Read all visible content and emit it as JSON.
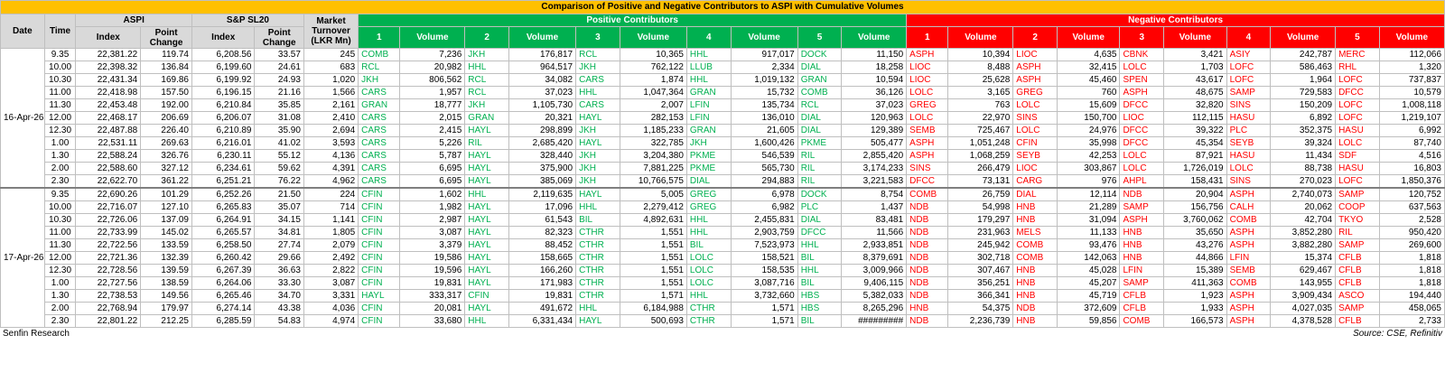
{
  "title": "Comparison of Positive and Negative Contributors to ASPI with Cumulative Volumes",
  "headers": {
    "date": "Date",
    "time": "Time",
    "aspi": "ASPI",
    "sp": "S&P SL20",
    "index": "Index",
    "point_change": "Point Change",
    "turnover": "Market Turnover (LKR Mn)",
    "positive": "Positive Contributors",
    "negative": "Negative Contributors",
    "volume": "Volume",
    "nums": [
      "1",
      "2",
      "3",
      "4",
      "5"
    ]
  },
  "days": [
    {
      "date": "16-Apr-26",
      "rows": [
        [
          "9.35",
          "22,381.22",
          "119.74",
          "6,208.56",
          "33.57",
          "245",
          "COMB",
          "7,236",
          "JKH",
          "176,817",
          "RCL",
          "10,365",
          "HHL",
          "917,017",
          "DOCK",
          "11,150",
          "ASPH",
          "10,394",
          "LIOC",
          "4,635",
          "CBNK",
          "3,421",
          "ASIY",
          "242,787",
          "MERC",
          "112,066"
        ],
        [
          "10.00",
          "22,398.32",
          "136.84",
          "6,199.60",
          "24.61",
          "683",
          "RCL",
          "20,982",
          "HHL",
          "964,517",
          "JKH",
          "762,122",
          "LLUB",
          "2,334",
          "DIAL",
          "18,258",
          "LIOC",
          "8,488",
          "ASPH",
          "32,415",
          "LOLC",
          "1,703",
          "LOFC",
          "586,463",
          "RHL",
          "1,320"
        ],
        [
          "10.30",
          "22,431.34",
          "169.86",
          "6,199.92",
          "24.93",
          "1,020",
          "JKH",
          "806,562",
          "RCL",
          "34,082",
          "CARS",
          "1,874",
          "HHL",
          "1,019,132",
          "GRAN",
          "10,594",
          "LIOC",
          "25,628",
          "ASPH",
          "45,460",
          "SPEN",
          "43,617",
          "LOFC",
          "1,964",
          "LOFC",
          "737,837"
        ],
        [
          "11.00",
          "22,418.98",
          "157.50",
          "6,196.15",
          "21.16",
          "1,566",
          "CARS",
          "1,957",
          "RCL",
          "37,023",
          "HHL",
          "1,047,364",
          "GRAN",
          "15,732",
          "COMB",
          "36,126",
          "LOLC",
          "3,165",
          "GREG",
          "760",
          "ASPH",
          "48,675",
          "SAMP",
          "729,583",
          "DFCC",
          "10,579"
        ],
        [
          "11.30",
          "22,453.48",
          "192.00",
          "6,210.84",
          "35.85",
          "2,161",
          "GRAN",
          "18,777",
          "JKH",
          "1,105,730",
          "CARS",
          "2,007",
          "LFIN",
          "135,734",
          "RCL",
          "37,023",
          "GREG",
          "763",
          "LOLC",
          "15,609",
          "DFCC",
          "32,820",
          "SINS",
          "150,209",
          "LOFC",
          "1,008,118"
        ],
        [
          "12.00",
          "22,468.17",
          "206.69",
          "6,206.07",
          "31.08",
          "2,410",
          "CARS",
          "2,015",
          "GRAN",
          "20,321",
          "HAYL",
          "282,153",
          "LFIN",
          "136,010",
          "DIAL",
          "120,963",
          "LOLC",
          "22,970",
          "SINS",
          "150,700",
          "LIOC",
          "112,115",
          "HASU",
          "6,892",
          "LOFC",
          "1,219,107"
        ],
        [
          "12.30",
          "22,487.88",
          "226.40",
          "6,210.89",
          "35.90",
          "2,694",
          "CARS",
          "2,415",
          "HAYL",
          "298,899",
          "JKH",
          "1,185,233",
          "GRAN",
          "21,605",
          "DIAL",
          "129,389",
          "SEMB",
          "725,467",
          "LOLC",
          "24,976",
          "DFCC",
          "39,322",
          "PLC",
          "352,375",
          "HASU",
          "6,992"
        ],
        [
          "1.00",
          "22,531.11",
          "269.63",
          "6,216.01",
          "41.02",
          "3,593",
          "CARS",
          "5,226",
          "RIL",
          "2,685,420",
          "HAYL",
          "322,785",
          "JKH",
          "1,600,426",
          "PKME",
          "505,477",
          "ASPH",
          "1,051,248",
          "CFIN",
          "35,998",
          "DFCC",
          "45,354",
          "SEYB",
          "39,324",
          "LOLC",
          "87,740"
        ],
        [
          "1.30",
          "22,588.24",
          "326.76",
          "6,230.11",
          "55.12",
          "4,136",
          "CARS",
          "5,787",
          "HAYL",
          "328,440",
          "JKH",
          "3,204,380",
          "PKME",
          "546,539",
          "RIL",
          "2,855,420",
          "ASPH",
          "1,068,259",
          "SEYB",
          "42,253",
          "LOLC",
          "87,921",
          "HASU",
          "11,434",
          "SDF",
          "4,516"
        ],
        [
          "2.00",
          "22,588.60",
          "327.12",
          "6,234.61",
          "59.62",
          "4,391",
          "CARS",
          "6,695",
          "HAYL",
          "375,900",
          "JKH",
          "7,881,225",
          "PKME",
          "565,730",
          "RIL",
          "3,174,233",
          "SINS",
          "266,479",
          "LIOC",
          "303,867",
          "LOLC",
          "1,726,019",
          "LOLC",
          "88,738",
          "HASU",
          "16,803"
        ],
        [
          "2.30",
          "22,622.70",
          "361.22",
          "6,251.21",
          "76.22",
          "4,962",
          "CARS",
          "6,695",
          "HAYL",
          "385,069",
          "JKH",
          "10,766,575",
          "DIAL",
          "294,883",
          "RIL",
          "3,221,583",
          "DFCC",
          "73,131",
          "CARG",
          "976",
          "AHPL",
          "158,431",
          "SINS",
          "270,023",
          "LOFC",
          "1,850,376"
        ]
      ]
    },
    {
      "date": "17-Apr-26",
      "rows": [
        [
          "9.35",
          "22,690.26",
          "101.29",
          "6,252.26",
          "21.50",
          "224",
          "CFIN",
          "1,602",
          "HHL",
          "2,119,635",
          "HAYL",
          "5,005",
          "GREG",
          "6,978",
          "DOCK",
          "8,754",
          "COMB",
          "26,759",
          "DIAL",
          "12,114",
          "NDB",
          "20,904",
          "ASPH",
          "2,740,073",
          "SAMP",
          "120,752"
        ],
        [
          "10.00",
          "22,716.07",
          "127.10",
          "6,265.83",
          "35.07",
          "714",
          "CFIN",
          "1,982",
          "HAYL",
          "17,096",
          "HHL",
          "2,279,412",
          "GREG",
          "6,982",
          "PLC",
          "1,437",
          "NDB",
          "54,998",
          "HNB",
          "21,289",
          "SAMP",
          "156,756",
          "CALH",
          "20,062",
          "COOP",
          "637,563"
        ],
        [
          "10.30",
          "22,726.06",
          "137.09",
          "6,264.91",
          "34.15",
          "1,141",
          "CFIN",
          "2,987",
          "HAYL",
          "61,543",
          "BIL",
          "4,892,631",
          "HHL",
          "2,455,831",
          "DIAL",
          "83,481",
          "NDB",
          "179,297",
          "HNB",
          "31,094",
          "ASPH",
          "3,760,062",
          "COMB",
          "42,704",
          "TKYO",
          "2,528"
        ],
        [
          "11.00",
          "22,733.99",
          "145.02",
          "6,265.57",
          "34.81",
          "1,805",
          "CFIN",
          "3,087",
          "HAYL",
          "82,323",
          "CTHR",
          "1,551",
          "HHL",
          "2,903,759",
          "DFCC",
          "11,566",
          "NDB",
          "231,963",
          "MELS",
          "11,133",
          "HNB",
          "35,650",
          "ASPH",
          "3,852,280",
          "RIL",
          "950,420"
        ],
        [
          "11.30",
          "22,722.56",
          "133.59",
          "6,258.50",
          "27.74",
          "2,079",
          "CFIN",
          "3,379",
          "HAYL",
          "88,452",
          "CTHR",
          "1,551",
          "BIL",
          "7,523,973",
          "HHL",
          "2,933,851",
          "NDB",
          "245,942",
          "COMB",
          "93,476",
          "HNB",
          "43,276",
          "ASPH",
          "3,882,280",
          "SAMP",
          "269,600"
        ],
        [
          "12.00",
          "22,721.36",
          "132.39",
          "6,260.42",
          "29.66",
          "2,492",
          "CFIN",
          "19,586",
          "HAYL",
          "158,665",
          "CTHR",
          "1,551",
          "LOLC",
          "158,521",
          "BIL",
          "8,379,691",
          "NDB",
          "302,718",
          "COMB",
          "142,063",
          "HNB",
          "44,866",
          "LFIN",
          "15,374",
          "CFLB",
          "1,818"
        ],
        [
          "12.30",
          "22,728.56",
          "139.59",
          "6,267.39",
          "36.63",
          "2,822",
          "CFIN",
          "19,596",
          "HAYL",
          "166,260",
          "CTHR",
          "1,551",
          "LOLC",
          "158,535",
          "HHL",
          "3,009,966",
          "NDB",
          "307,467",
          "HNB",
          "45,028",
          "LFIN",
          "15,389",
          "SEMB",
          "629,467",
          "CFLB",
          "1,818"
        ],
        [
          "1.00",
          "22,727.56",
          "138.59",
          "6,264.06",
          "33.30",
          "3,087",
          "CFIN",
          "19,831",
          "HAYL",
          "171,983",
          "CTHR",
          "1,551",
          "LOLC",
          "3,087,716",
          "BIL",
          "9,406,115",
          "NDB",
          "356,251",
          "HNB",
          "45,207",
          "SAMP",
          "411,363",
          "COMB",
          "143,955",
          "CFLB",
          "1,818"
        ],
        [
          "1.30",
          "22,738.53",
          "149.56",
          "6,265.46",
          "34.70",
          "3,331",
          "HAYL",
          "333,317",
          "CFIN",
          "19,831",
          "CTHR",
          "1,571",
          "HHL",
          "3,732,660",
          "HBS",
          "5,382,033",
          "NDB",
          "366,341",
          "HNB",
          "45,719",
          "CFLB",
          "1,923",
          "ASPH",
          "3,909,434",
          "ASCO",
          "194,440"
        ],
        [
          "2.00",
          "22,768.94",
          "179.97",
          "6,274.14",
          "43.38",
          "4,036",
          "CFIN",
          "20,081",
          "HAYL",
          "491,672",
          "HHL",
          "6,184,988",
          "CTHR",
          "1,571",
          "HBS",
          "8,265,296",
          "HNB",
          "54,375",
          "NDB",
          "372,609",
          "CFLB",
          "1,933",
          "ASPH",
          "4,027,035",
          "SAMP",
          "458,065"
        ],
        [
          "2.30",
          "22,801.22",
          "212.25",
          "6,285.59",
          "54.83",
          "4,974",
          "CFIN",
          "33,680",
          "HHL",
          "6,331,434",
          "HAYL",
          "500,693",
          "CTHR",
          "1,571",
          "BIL",
          "#########",
          "NDB",
          "2,236,739",
          "HNB",
          "59,856",
          "COMB",
          "166,573",
          "ASPH",
          "4,378,528",
          "CFLB",
          "2,733"
        ]
      ]
    }
  ],
  "footer": {
    "left": "Senfin Research",
    "right": "Source: CSE, Refinitiv"
  },
  "colors": {
    "title_bg": "#ffc000",
    "positive": "#00b050",
    "negative": "#ff0000",
    "header_bg": "#d9d9d9"
  }
}
